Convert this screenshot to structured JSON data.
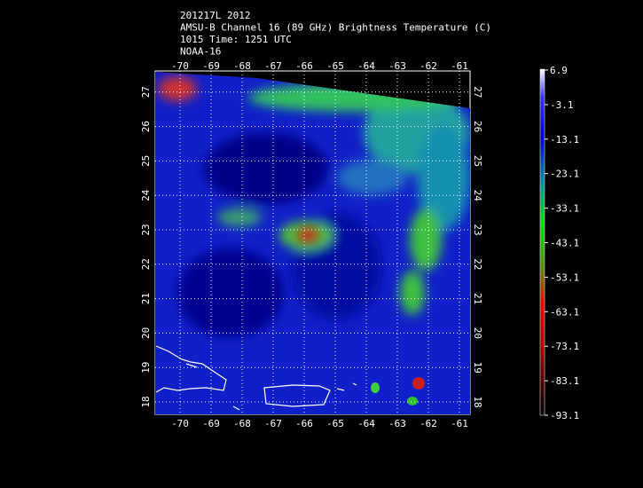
{
  "header": {
    "lines": [
      "201217L 2012",
      "AMSU-B Channel 16 (89 GHz) Brightness Temperature (C)",
      "1015 Time: 1251 UTC",
      "NOAA-16"
    ]
  },
  "map": {
    "longitudes": [
      -70,
      -69,
      -68,
      -67,
      -66,
      -65,
      -64,
      -63,
      -62,
      -61
    ],
    "latitudes": [
      18,
      19,
      20,
      21,
      22,
      23,
      24,
      25,
      26,
      27
    ]
  },
  "colorbar": {
    "labels": [
      "6.9",
      "-3.1",
      "-13.1",
      "-23.1",
      "-33.1",
      "-43.1",
      "-53.1",
      "-63.1",
      "-73.1",
      "-83.1",
      "-93.1"
    ]
  }
}
